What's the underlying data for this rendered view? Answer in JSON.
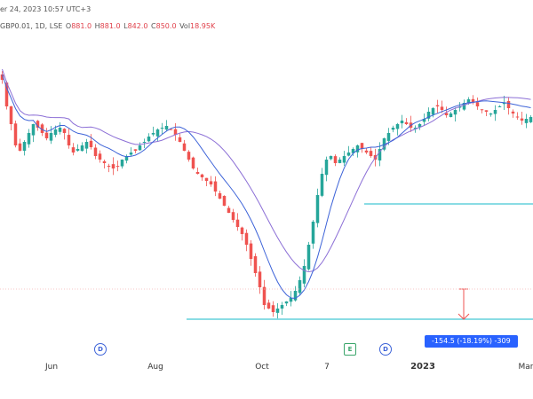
{
  "header": {
    "line1": "er 24, 2023 10:57 UTC+3",
    "line2_prefix": "GBP0.01, 1D, LSE",
    "ohlc": [
      {
        "label": "O",
        "value": "881.0"
      },
      {
        "label": "H",
        "value": "881.0"
      },
      {
        "label": "L",
        "value": "842.0"
      },
      {
        "label": "C",
        "value": "850.0"
      },
      {
        "label": "Vol",
        "value": "18.95K"
      }
    ]
  },
  "colors": {
    "up": "#26a69a",
    "down": "#ef5350",
    "ma_fast": "#3d63d8",
    "ma_slow": "#8c6fd6",
    "level": "#45c6d4",
    "measure_arrow": "#ef5350"
  },
  "x_axis": {
    "ticks": [
      {
        "label": "Jun",
        "bold": false
      },
      {
        "label": "Aug",
        "bold": false
      },
      {
        "label": "Oct",
        "bold": false
      },
      {
        "label": "7",
        "bold": false
      },
      {
        "label": "2023",
        "bold": true
      },
      {
        "label": "Mar",
        "bold": false
      }
    ]
  },
  "events": [
    {
      "icon": "D"
    },
    {
      "icon": "E"
    },
    {
      "icon": "D"
    }
  ],
  "measure": {
    "label": "-154.5 (-18.19%) -309"
  },
  "chart_data": {
    "type": "candlestick",
    "x_tick_labels": [
      "Jun",
      "Aug",
      "Oct",
      "7",
      "2023",
      "Mar"
    ],
    "levels": [
      915,
      850
    ],
    "ylim": [
      830,
      1010
    ],
    "series": [
      {
        "type": "candlestick",
        "close_path": [
          985,
          970,
          960,
          948,
          945,
          950,
          955,
          960,
          958,
          955,
          952,
          955,
          957,
          958,
          955,
          948,
          944,
          946,
          948,
          950,
          947,
          942,
          940,
          938,
          936,
          935,
          936,
          940,
          942,
          944,
          945,
          948,
          950,
          953,
          955,
          957,
          958,
          959,
          957,
          954,
          950,
          945,
          940,
          935,
          932,
          930,
          928,
          926,
          922,
          918,
          914,
          910,
          906,
          902,
          898,
          892,
          884,
          876,
          868,
          858,
          856,
          854,
          856,
          858,
          860,
          862,
          866,
          872,
          880,
          892,
          905,
          920,
          932,
          940,
          942,
          938,
          940,
          942,
          944,
          946,
          948,
          946,
          944,
          942,
          940,
          946,
          952,
          955,
          958,
          960,
          962,
          960,
          958,
          958,
          960,
          963,
          967,
          969,
          970,
          968,
          965,
          966,
          968,
          970,
          972,
          974,
          972,
          970,
          968,
          967,
          966,
          968,
          970,
          972,
          969,
          966,
          964,
          962,
          963,
          964
        ]
      },
      {
        "type": "line",
        "name": "",
        "values_from": "moving-average-fast"
      },
      {
        "type": "line",
        "name": "",
        "values_from": "moving-average-slow"
      }
    ]
  }
}
